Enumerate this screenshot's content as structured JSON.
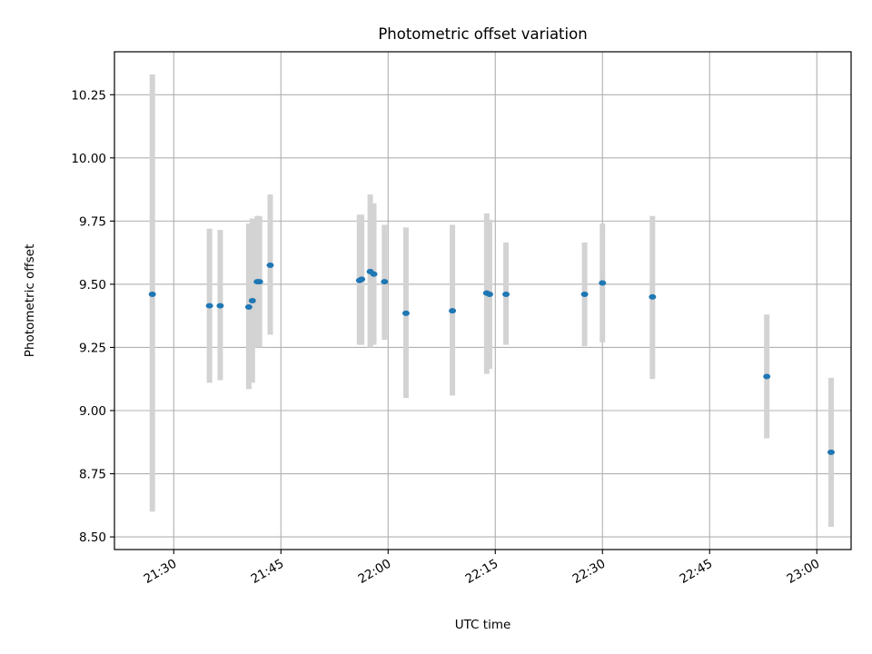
{
  "chart_data": {
    "type": "scatter",
    "title": "Photometric offset variation",
    "xlabel": "UTC time",
    "ylabel": "Photometric offset",
    "x_ticks": [
      "21:30",
      "21:45",
      "22:00",
      "22:15",
      "22:30",
      "22:45",
      "23:00"
    ],
    "x_tick_minutes": [
      1290,
      1305,
      1320,
      1335,
      1350,
      1365,
      1380
    ],
    "xlim_minutes": [
      1281.7,
      1384.8
    ],
    "y_ticks": [
      "8.50",
      "8.75",
      "9.00",
      "9.25",
      "9.50",
      "9.75",
      "10.00",
      "10.25"
    ],
    "ylim": [
      8.45,
      10.42
    ],
    "grid": true,
    "x_is_time": true,
    "x_tick_rotation": 30,
    "point_color": "#1f77b4",
    "errorbar_color": "#d3d3d3",
    "series": [
      {
        "x": [
          "21:27",
          "21:35",
          "21:36.5",
          "21:40.5",
          "21:41",
          "21:41.7",
          "21:42",
          "21:43.5",
          "21:56",
          "21:56.3",
          "21:57.5",
          "21:58",
          "21:59.5",
          "22:02.5",
          "22:09",
          "22:13.8",
          "22:14.2",
          "22:16.5",
          "22:27.5",
          "22:30",
          "22:37",
          "22:53",
          "23:02"
        ],
        "y": [
          9.46,
          9.415,
          9.415,
          9.41,
          9.435,
          9.51,
          9.51,
          9.575,
          9.515,
          9.52,
          9.55,
          9.54,
          9.51,
          9.385,
          9.395,
          9.465,
          9.46,
          9.46,
          9.46,
          9.505,
          9.45,
          9.135,
          8.835
        ],
        "y_low": [
          8.6,
          9.11,
          9.12,
          9.085,
          9.11,
          9.25,
          9.25,
          9.3,
          9.26,
          9.26,
          9.25,
          9.26,
          9.28,
          9.05,
          9.06,
          9.145,
          9.165,
          9.26,
          9.255,
          9.27,
          9.125,
          8.89,
          8.54
        ],
        "y_high": [
          10.33,
          9.72,
          9.715,
          9.74,
          9.76,
          9.77,
          9.77,
          9.855,
          9.775,
          9.775,
          9.855,
          9.82,
          9.735,
          9.725,
          9.735,
          9.78,
          9.755,
          9.665,
          9.665,
          9.74,
          9.77,
          9.38,
          9.13
        ]
      }
    ]
  }
}
